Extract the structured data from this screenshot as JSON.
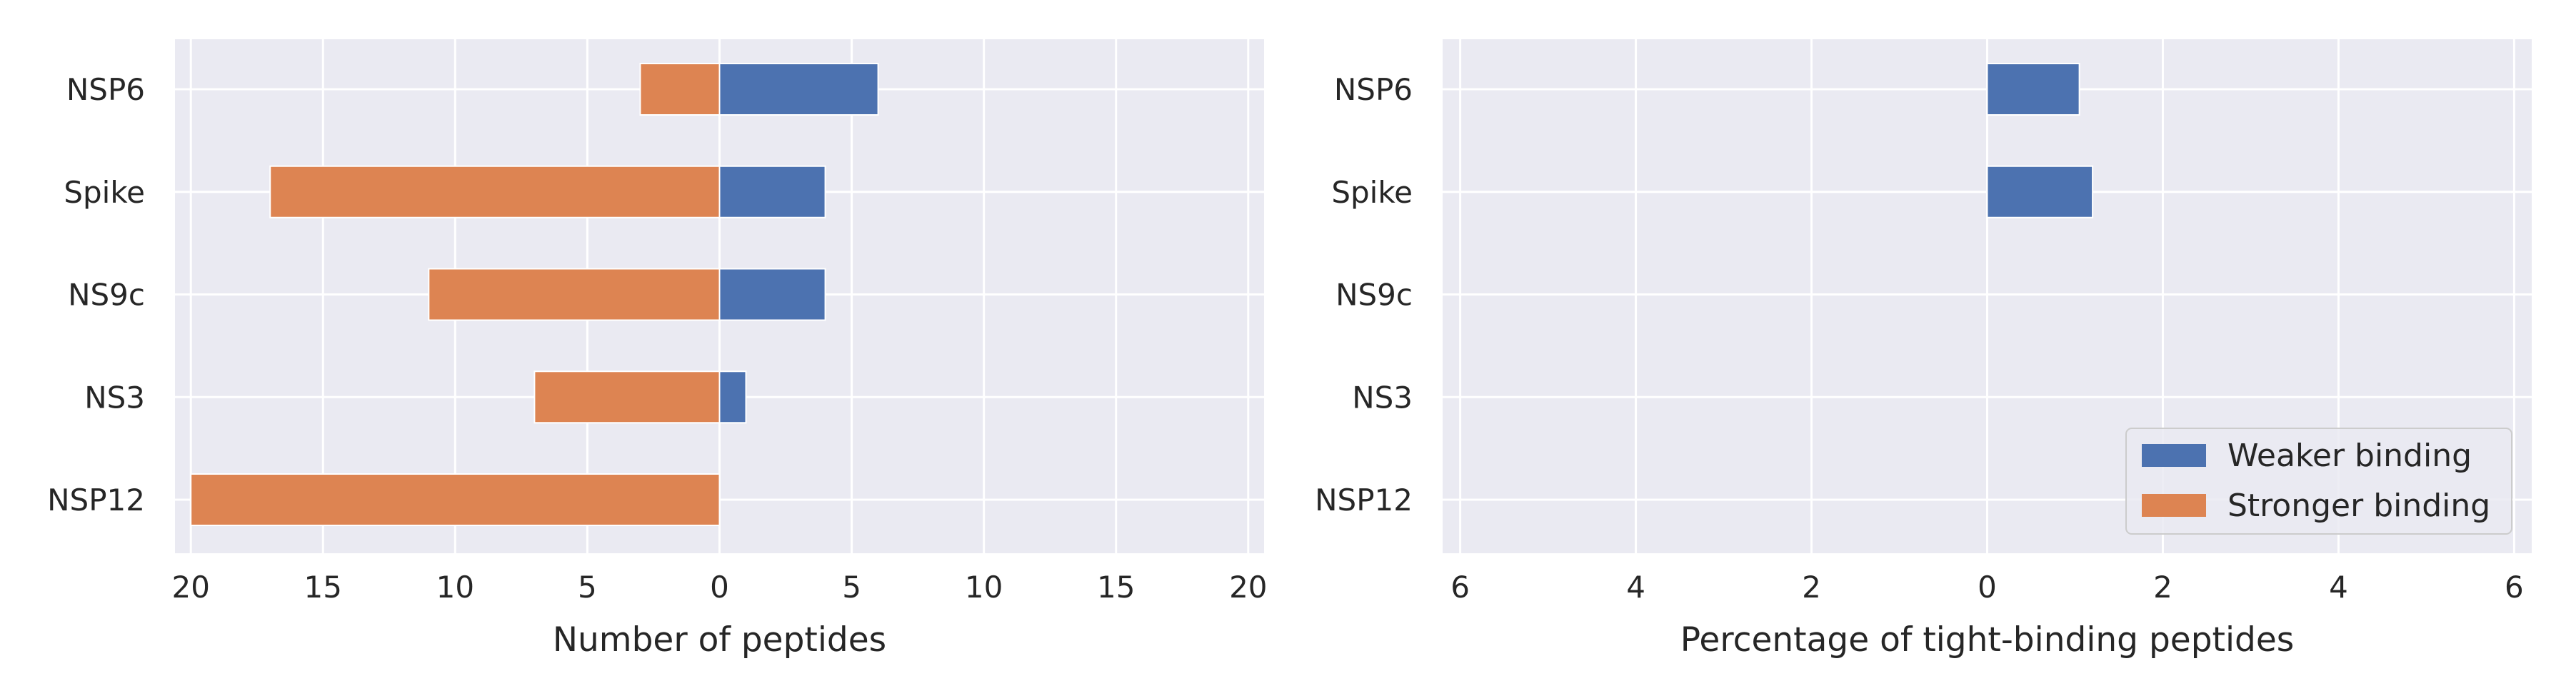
{
  "colors": {
    "plot_bg": "#EAEAF2",
    "grid": "#FFFFFF",
    "weaker": "#4C72B0",
    "stronger": "#DD8452",
    "text": "#262626"
  },
  "chart_data": [
    {
      "type": "bar",
      "orientation": "horizontal",
      "stacking": "diverging",
      "categories": [
        "NSP6",
        "Spike",
        "NS9c",
        "NS3",
        "NSP12"
      ],
      "xlabel": "Number of peptides",
      "xlim": [
        -20.6,
        20.6
      ],
      "xticks": [
        -20,
        -15,
        -10,
        -5,
        0,
        5,
        10,
        15,
        20
      ],
      "xtick_labels": [
        "20",
        "15",
        "10",
        "5",
        "0",
        "5",
        "10",
        "15",
        "20"
      ],
      "grid": true,
      "series": [
        {
          "key": "weaker",
          "values": [
            6,
            4,
            4,
            1,
            0
          ]
        },
        {
          "key": "stronger",
          "values": [
            -3,
            -17,
            -11,
            -7,
            -20
          ]
        }
      ]
    },
    {
      "type": "bar",
      "orientation": "horizontal",
      "categories": [
        "NSP6",
        "Spike",
        "NS9c",
        "NS3",
        "NSP12"
      ],
      "xlabel": "Percentage of tight-binding peptides",
      "xlim": [
        -6.2,
        6.2
      ],
      "xticks": [
        -6,
        -4,
        -2,
        0,
        2,
        4,
        6
      ],
      "xtick_labels": [
        "6",
        "4",
        "2",
        "0",
        "2",
        "4",
        "6"
      ],
      "grid": true,
      "legend": "lower-right",
      "series": [
        {
          "key": "weaker",
          "name": "Weaker binding",
          "values": [
            1.05,
            1.2,
            0,
            0,
            0
          ]
        },
        {
          "key": "stronger",
          "name": "Stronger binding",
          "values": [
            0,
            0,
            0,
            0,
            0
          ]
        }
      ]
    }
  ]
}
